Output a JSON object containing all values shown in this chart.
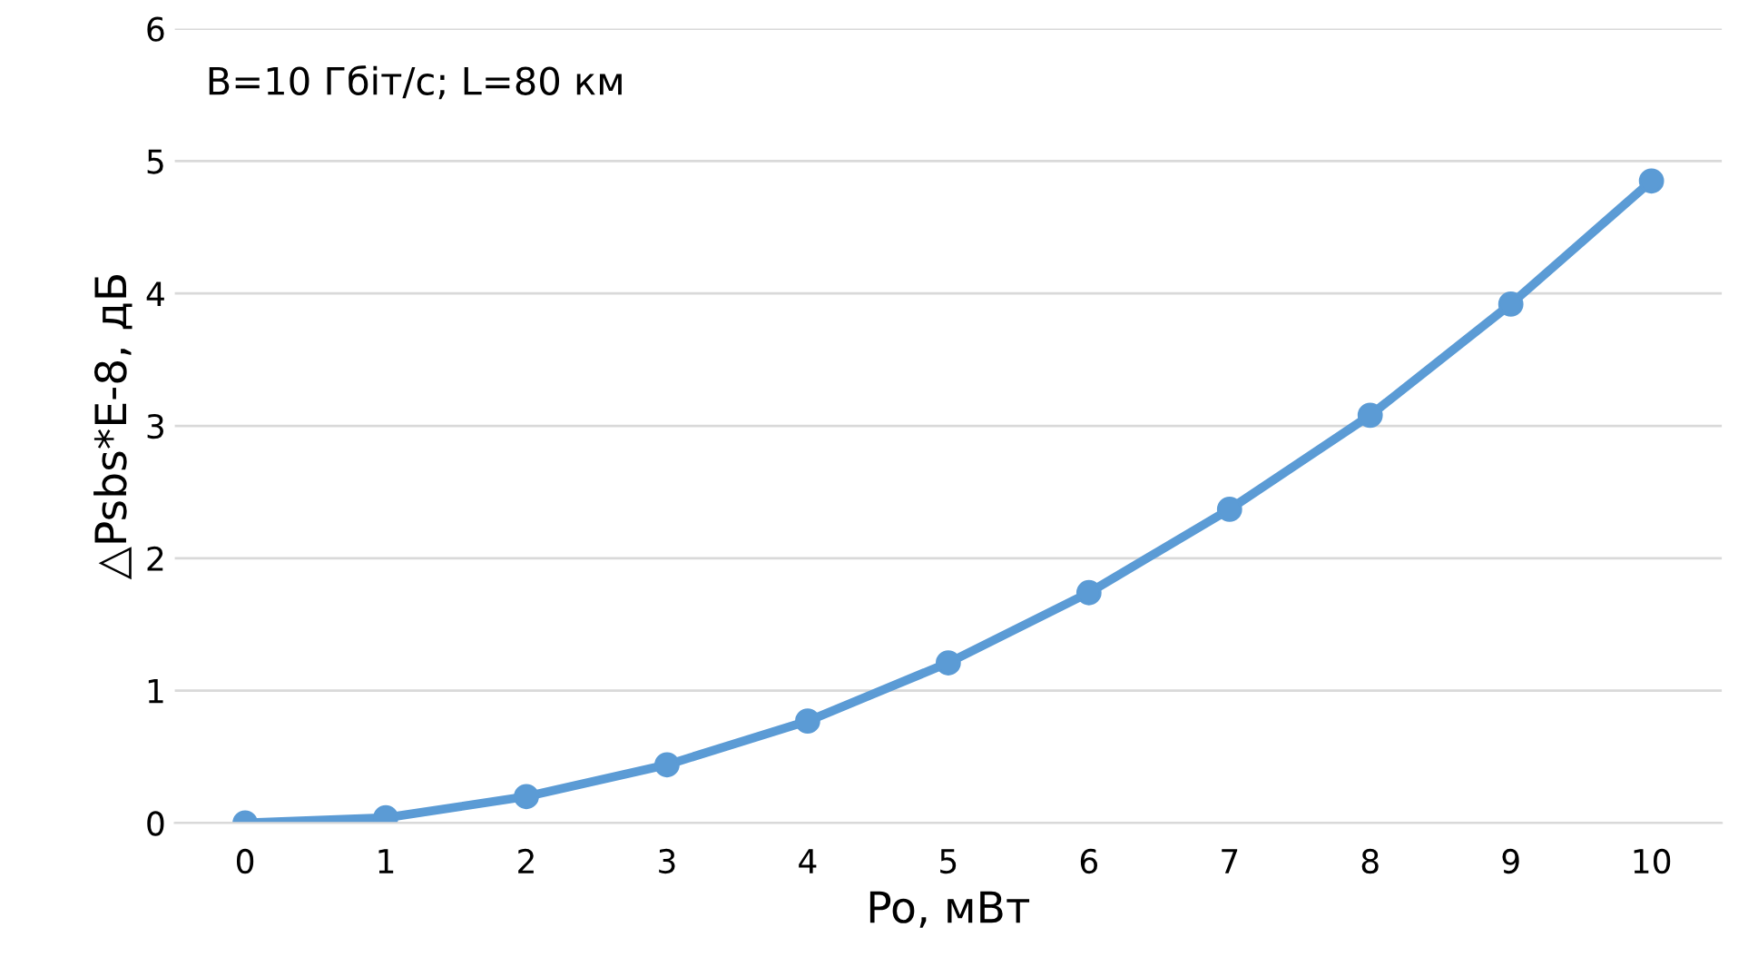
{
  "chart_data": {
    "type": "line",
    "xlabel": "Po, мВт",
    "ylabel": "△Psbs*E-8, дБ",
    "annotations": [
      "B=10 Гбіт/с; L=80 км"
    ],
    "categories": [
      "0",
      "1",
      "2",
      "3",
      "4",
      "5",
      "6",
      "7",
      "8",
      "9",
      "10"
    ],
    "series": [
      {
        "color": "#5b9bd5",
        "values": [
          0,
          0.04,
          0.2,
          0.44,
          0.77,
          1.21,
          1.74,
          2.37,
          3.08,
          3.92,
          4.85
        ]
      }
    ],
    "ylim": [
      0,
      6
    ],
    "yticks": [
      0,
      1,
      2,
      3,
      4,
      5,
      6
    ],
    "grid": "y",
    "marker": "circle",
    "line_style": "solid",
    "legend": false
  }
}
